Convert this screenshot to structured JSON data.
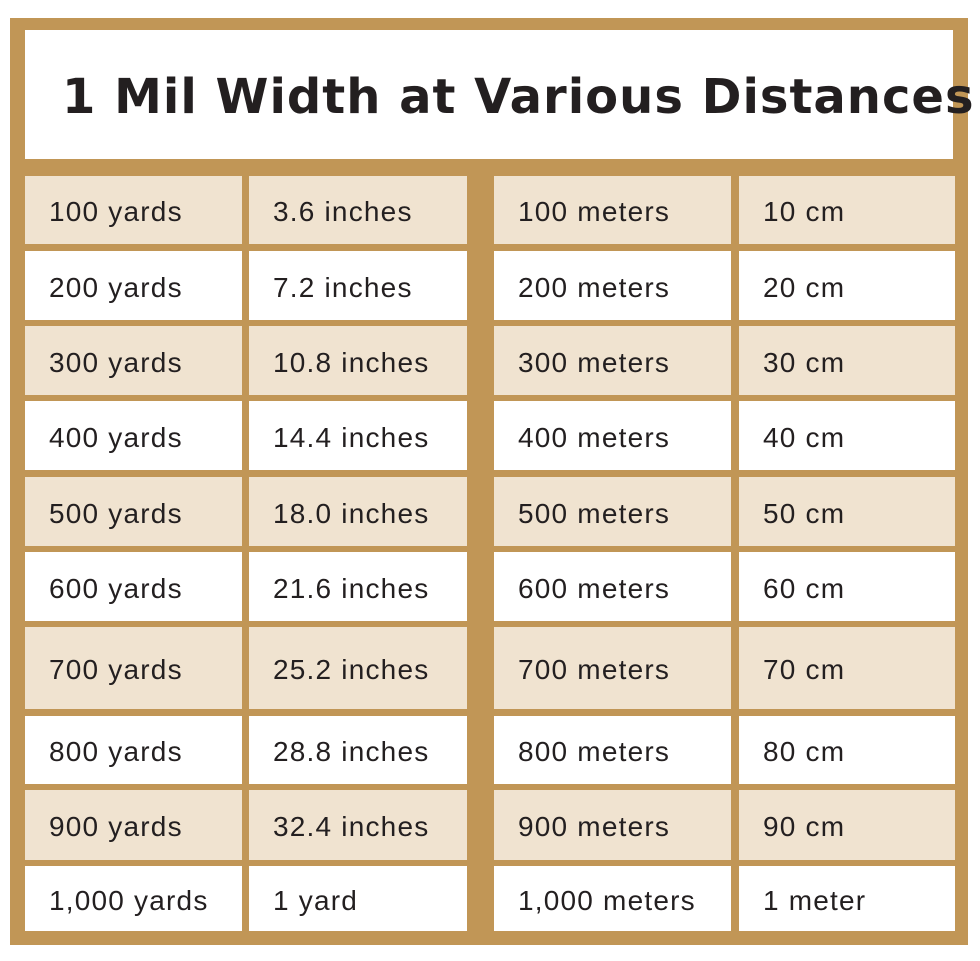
{
  "title": "1 Mil Width at Various Distances",
  "colors": {
    "frame": "#c19656",
    "shaded_row": "#f0e3d0",
    "plain_row": "#ffffff",
    "text": "#231f20"
  },
  "rows": [
    {
      "yards": "100 yards",
      "inches": "3.6 inches",
      "meters": "100 meters",
      "cm": "10 cm"
    },
    {
      "yards": "200 yards",
      "inches": "7.2 inches",
      "meters": "200 meters",
      "cm": "20 cm"
    },
    {
      "yards": "300 yards",
      "inches": "10.8 inches",
      "meters": "300 meters",
      "cm": "30 cm"
    },
    {
      "yards": "400 yards",
      "inches": "14.4 inches",
      "meters": "400 meters",
      "cm": "40 cm"
    },
    {
      "yards": "500 yards",
      "inches": "18.0 inches",
      "meters": "500 meters",
      "cm": "50 cm"
    },
    {
      "yards": "600 yards",
      "inches": "21.6 inches",
      "meters": "600 meters",
      "cm": "60 cm"
    },
    {
      "yards": "700 yards",
      "inches": "25.2 inches",
      "meters": "700 meters",
      "cm": "70 cm"
    },
    {
      "yards": "800 yards",
      "inches": "28.8 inches",
      "meters": "800 meters",
      "cm": "80 cm"
    },
    {
      "yards": "900 yards",
      "inches": "32.4 inches",
      "meters": "900 meters",
      "cm": "90 cm"
    },
    {
      "yards": "1,000 yards",
      "inches": "1 yard",
      "meters": "1,000 meters",
      "cm": "1 meter"
    }
  ]
}
